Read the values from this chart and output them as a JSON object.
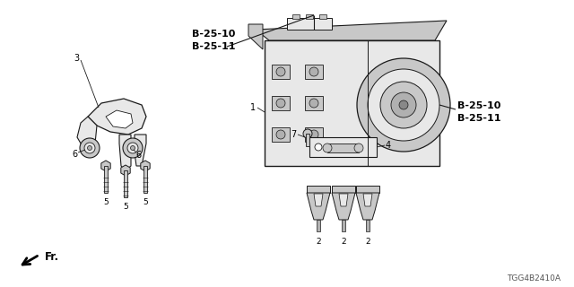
{
  "bg_color": "#ffffff",
  "line_color": "#1a1a1a",
  "font_color": "#000000",
  "gray_fill": "#c8c8c8",
  "light_gray": "#e8e8e8",
  "mid_gray": "#b0b0b0",
  "dark_gray": "#888888",
  "diagram_code": "TGG4B2410A",
  "labels": {
    "b25_top": "B-25-10\nB-25-11",
    "b25_right": "B-25-10\nB-25-11",
    "fr": "Fr.",
    "p1": "1",
    "p2": "2",
    "p3": "3",
    "p4": "4",
    "p5": "5",
    "p6": "6",
    "p7": "7"
  }
}
